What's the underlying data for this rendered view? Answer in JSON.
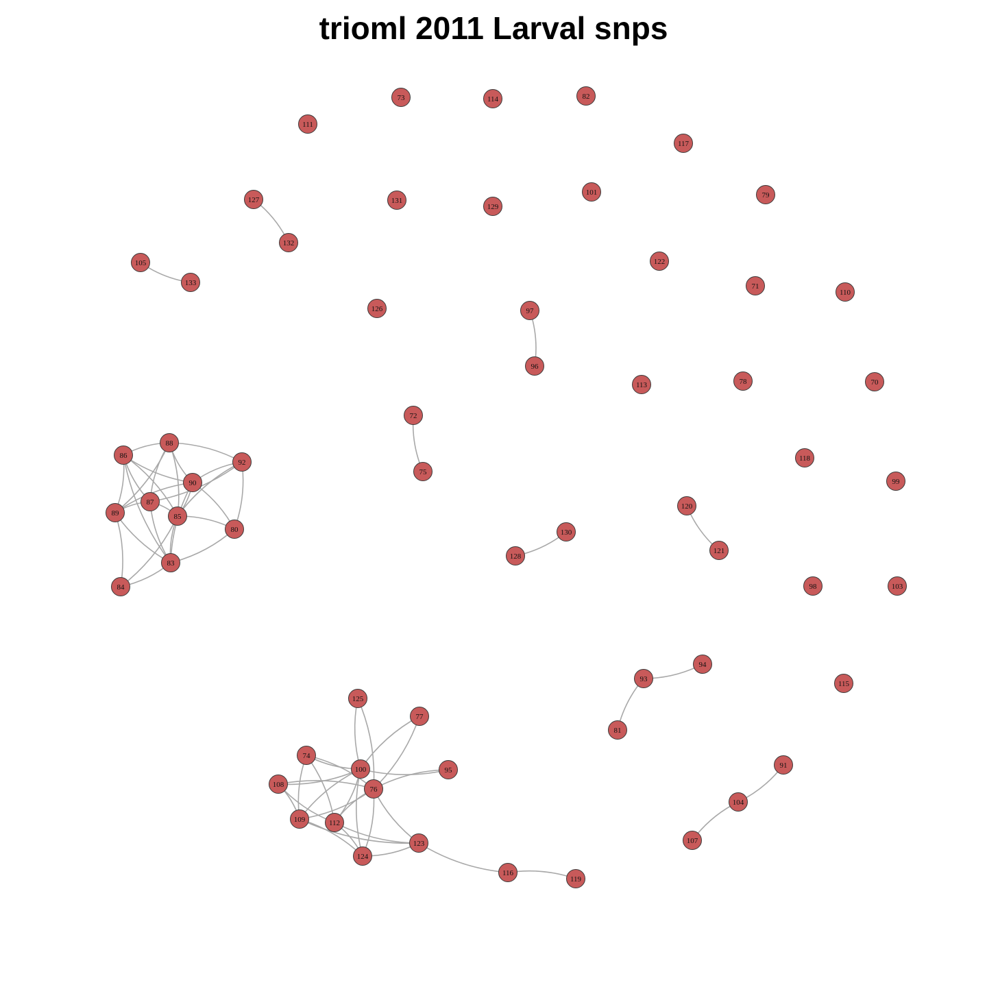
{
  "title": "trioml 2011 Larval snps",
  "colors": {
    "node_fill": "#c85a5a",
    "node_stroke": "#3a3a3a",
    "edge": "#a8a8a8",
    "background": "#ffffff"
  },
  "nodes": [
    "73",
    "114",
    "82",
    "111",
    "117",
    "127",
    "131",
    "129",
    "101",
    "79",
    "132",
    "105",
    "133",
    "122",
    "71",
    "110",
    "126",
    "97",
    "96",
    "113",
    "78",
    "70",
    "72",
    "75",
    "118",
    "99",
    "86",
    "88",
    "92",
    "90",
    "87",
    "89",
    "85",
    "80",
    "83",
    "84",
    "120",
    "130",
    "121",
    "128",
    "98",
    "103",
    "94",
    "93",
    "115",
    "81",
    "125",
    "77",
    "74",
    "100",
    "95",
    "108",
    "76",
    "109",
    "112",
    "123",
    "124",
    "116",
    "119",
    "91",
    "104",
    "107"
  ],
  "edges": [
    [
      "127",
      "132"
    ],
    [
      "105",
      "133"
    ],
    [
      "97",
      "96"
    ],
    [
      "72",
      "75"
    ],
    [
      "130",
      "128"
    ],
    [
      "120",
      "121"
    ],
    [
      "94",
      "93"
    ],
    [
      "93",
      "81"
    ],
    [
      "91",
      "104"
    ],
    [
      "104",
      "107"
    ],
    [
      "86",
      "88"
    ],
    [
      "86",
      "90"
    ],
    [
      "86",
      "85"
    ],
    [
      "86",
      "87"
    ],
    [
      "86",
      "89"
    ],
    [
      "86",
      "83"
    ],
    [
      "88",
      "92"
    ],
    [
      "88",
      "87"
    ],
    [
      "88",
      "85"
    ],
    [
      "88",
      "90"
    ],
    [
      "88",
      "89"
    ],
    [
      "92",
      "90"
    ],
    [
      "92",
      "80"
    ],
    [
      "92",
      "85"
    ],
    [
      "92",
      "87"
    ],
    [
      "90",
      "89"
    ],
    [
      "90",
      "85"
    ],
    [
      "90",
      "83"
    ],
    [
      "90",
      "80"
    ],
    [
      "87",
      "89"
    ],
    [
      "87",
      "85"
    ],
    [
      "87",
      "83"
    ],
    [
      "89",
      "84"
    ],
    [
      "89",
      "83"
    ],
    [
      "85",
      "80"
    ],
    [
      "85",
      "83"
    ],
    [
      "85",
      "84"
    ],
    [
      "83",
      "80"
    ],
    [
      "83",
      "84"
    ],
    [
      "125",
      "100"
    ],
    [
      "125",
      "76"
    ],
    [
      "77",
      "100"
    ],
    [
      "77",
      "76"
    ],
    [
      "74",
      "100"
    ],
    [
      "74",
      "76"
    ],
    [
      "74",
      "109"
    ],
    [
      "74",
      "112"
    ],
    [
      "100",
      "95"
    ],
    [
      "100",
      "108"
    ],
    [
      "100",
      "109"
    ],
    [
      "100",
      "112"
    ],
    [
      "100",
      "124"
    ],
    [
      "76",
      "95"
    ],
    [
      "76",
      "108"
    ],
    [
      "76",
      "109"
    ],
    [
      "76",
      "112"
    ],
    [
      "76",
      "124"
    ],
    [
      "76",
      "123"
    ],
    [
      "108",
      "109"
    ],
    [
      "108",
      "112"
    ],
    [
      "109",
      "124"
    ],
    [
      "109",
      "123"
    ],
    [
      "112",
      "124"
    ],
    [
      "112",
      "123"
    ],
    [
      "123",
      "124"
    ],
    [
      "123",
      "116"
    ],
    [
      "116",
      "119"
    ]
  ]
}
